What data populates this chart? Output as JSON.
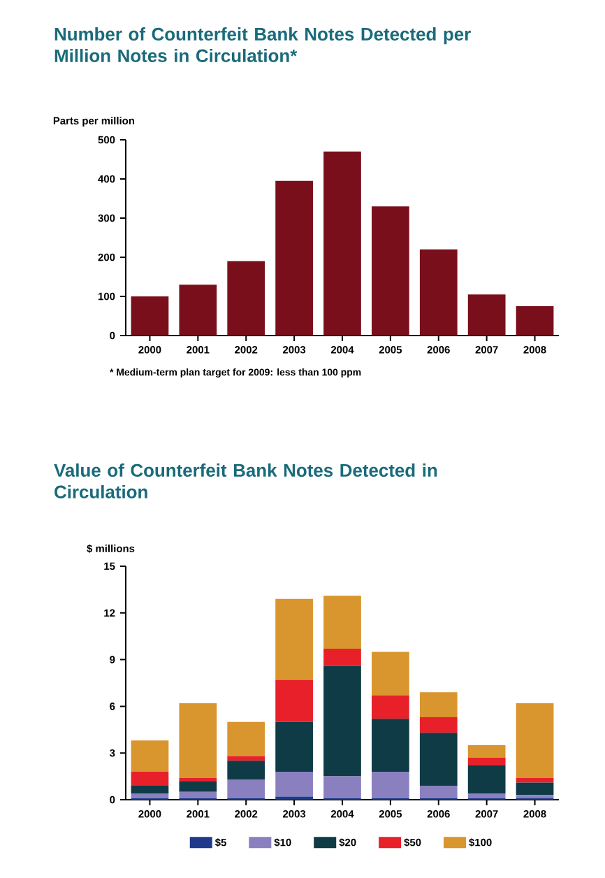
{
  "chart_data": [
    {
      "type": "bar",
      "title": "Number of Counterfeit Bank Notes Detected per Million Notes in Circulation*",
      "ylabel": "Parts per million",
      "categories": [
        "2000",
        "2001",
        "2002",
        "2003",
        "2004",
        "2005",
        "2006",
        "2007",
        "2008"
      ],
      "values": [
        100,
        130,
        190,
        395,
        470,
        330,
        220,
        105,
        75
      ],
      "color": "#7a0f1c",
      "ylim": [
        0,
        500
      ],
      "yticks": [
        0,
        100,
        200,
        300,
        400,
        500
      ],
      "annotations": [
        "* Medium-term plan target for 2009: less than 100 ppm"
      ]
    },
    {
      "type": "bar",
      "title": "Value of Counterfeit Bank Notes Detected in Circulation",
      "ylabel": "$ millions",
      "categories": [
        "2000",
        "2001",
        "2002",
        "2003",
        "2004",
        "2005",
        "2006",
        "2007",
        "2008"
      ],
      "stacked": true,
      "legend": "bottom",
      "series": [
        {
          "name": "$5",
          "color": "#1f3a8a",
          "values": [
            0.1,
            0.1,
            0.1,
            0.2,
            0.1,
            0.1,
            0.1,
            0.1,
            0.1
          ]
        },
        {
          "name": "$10",
          "color": "#8a80c0",
          "values": [
            0.3,
            0.4,
            1.2,
            1.6,
            1.4,
            1.7,
            0.8,
            0.3,
            0.2
          ]
        },
        {
          "name": "$20",
          "color": "#0e3b45",
          "values": [
            0.5,
            0.7,
            1.2,
            3.2,
            7.1,
            3.4,
            3.4,
            1.8,
            0.8
          ]
        },
        {
          "name": "$50",
          "color": "#e8202a",
          "values": [
            0.9,
            0.2,
            0.3,
            2.7,
            1.1,
            1.5,
            1.0,
            0.5,
            0.3
          ]
        },
        {
          "name": "$100",
          "color": "#d9952e",
          "values": [
            2.0,
            4.8,
            2.2,
            5.2,
            3.4,
            2.8,
            1.6,
            0.8,
            4.8
          ]
        }
      ],
      "ylim": [
        0,
        15
      ],
      "yticks": [
        0,
        3,
        6,
        9,
        12,
        15
      ]
    }
  ]
}
